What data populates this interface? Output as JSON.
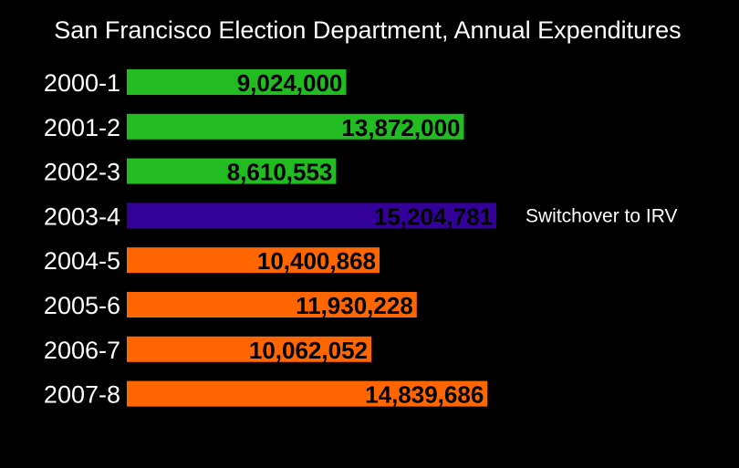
{
  "chart_data": {
    "type": "bar",
    "orientation": "horizontal",
    "title": "San Francisco Election Department, Annual Expenditures",
    "xlabel": "",
    "ylabel": "",
    "categories": [
      "2000-1",
      "2001-2",
      "2002-3",
      "2003-4",
      "2004-5",
      "2005-6",
      "2006-7",
      "2007-8"
    ],
    "values": [
      9024000,
      13872000,
      8610553,
      15204781,
      10400868,
      11930228,
      10062052,
      14839686
    ],
    "value_labels": [
      "9,024,000",
      "13,872,000",
      "8,610,553",
      "15,204,781",
      "10,400,868",
      "11,930,228",
      "10,062,052",
      "14,839,686"
    ],
    "colors": [
      "#22bb22",
      "#22bb22",
      "#22bb22",
      "#330099",
      "#ff6600",
      "#ff6600",
      "#ff6600",
      "#ff6600"
    ],
    "annotations": [
      {
        "category": "2003-4",
        "text": "Switchover to IRV"
      }
    ],
    "grid": false,
    "legend": "none",
    "background": "#000000"
  }
}
